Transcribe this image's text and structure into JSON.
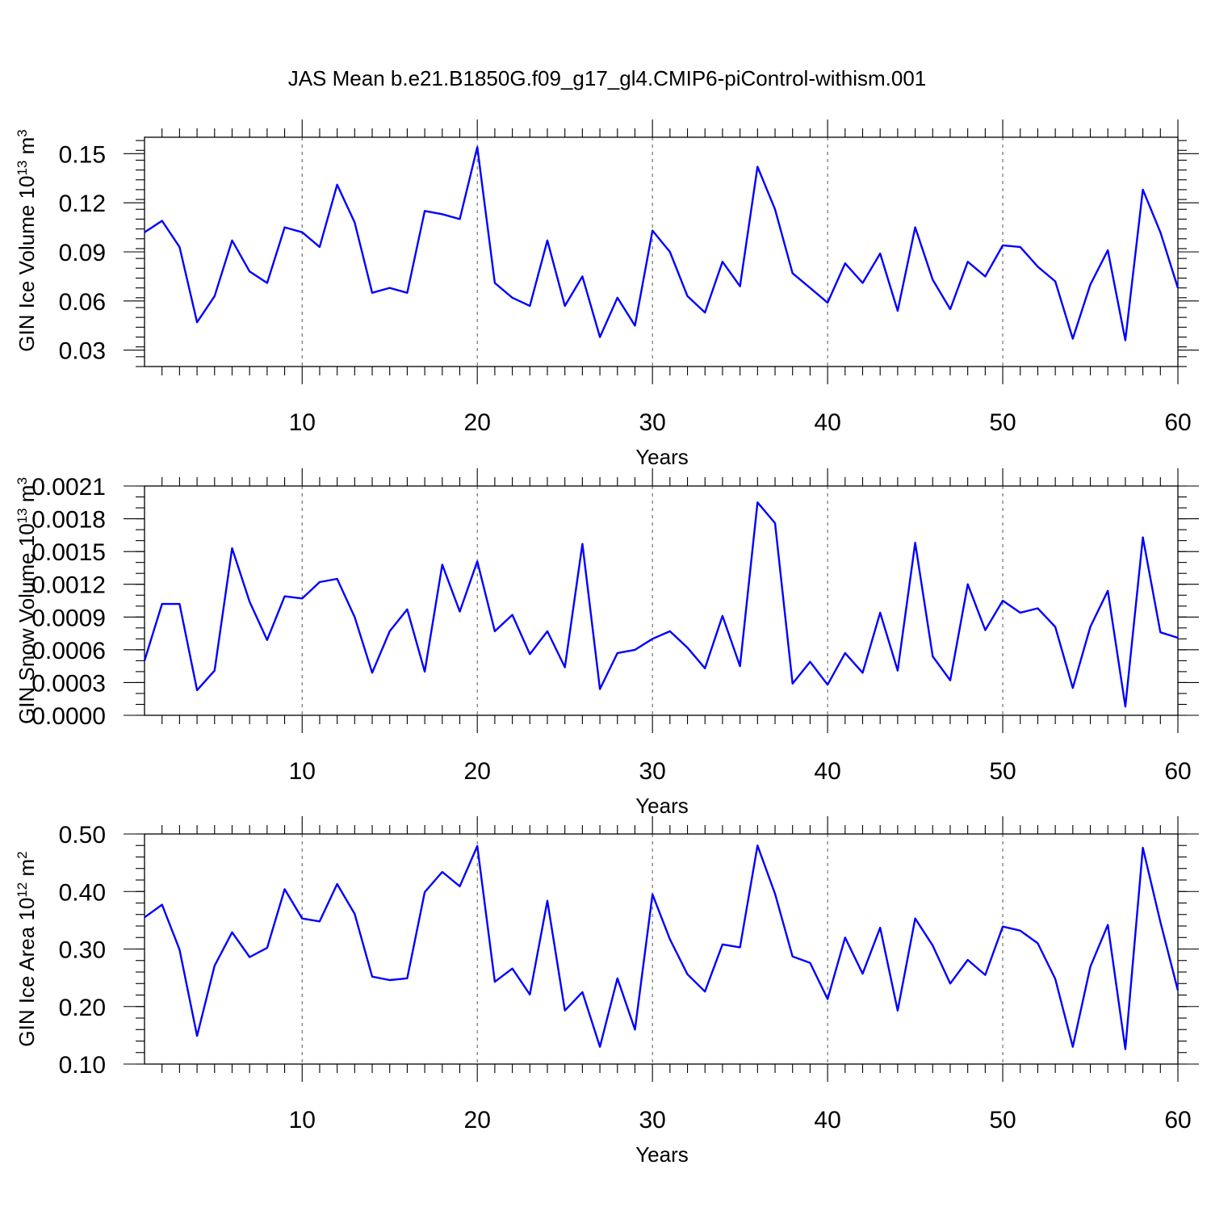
{
  "title": "JAS Mean b.e21.B1850G.f09_g17_gl4.CMIP6-piControl-withism.001",
  "colors": {
    "line": "#0000ff",
    "grid": "#555555",
    "frame": "#000000"
  },
  "chart_data": [
    {
      "type": "line",
      "ylabel_main": "GIN Ice Volume 10",
      "ylabel_exp": "13",
      "ylabel_unit": " m",
      "ylabel_unit_exp": "3",
      "xlabel": "Years",
      "xlim": [
        1,
        60
      ],
      "ylim": [
        0.02,
        0.16
      ],
      "xticks": [
        10,
        20,
        30,
        40,
        50,
        60
      ],
      "yticks": [
        0.03,
        0.06,
        0.09,
        0.12,
        0.15
      ],
      "ytick_labels": [
        "0.03",
        "0.06",
        "0.09",
        "0.12",
        "0.15"
      ],
      "ytick_minor_step": 0.006,
      "xgrid": [
        10,
        20,
        30,
        40,
        50
      ],
      "x": [
        1,
        2,
        3,
        4,
        5,
        6,
        7,
        8,
        9,
        10,
        11,
        12,
        13,
        14,
        15,
        16,
        17,
        18,
        19,
        20,
        21,
        22,
        23,
        24,
        25,
        26,
        27,
        28,
        29,
        30,
        31,
        32,
        33,
        34,
        35,
        36,
        37,
        38,
        39,
        40,
        41,
        42,
        43,
        44,
        45,
        46,
        47,
        48,
        49,
        50,
        51,
        52,
        53,
        54,
        55,
        56,
        57,
        58,
        59,
        60
      ],
      "values": [
        0.102,
        0.109,
        0.093,
        0.047,
        0.063,
        0.097,
        0.078,
        0.071,
        0.105,
        0.102,
        0.093,
        0.131,
        0.108,
        0.065,
        0.068,
        0.065,
        0.115,
        0.113,
        0.11,
        0.154,
        0.071,
        0.062,
        0.057,
        0.097,
        0.057,
        0.075,
        0.038,
        0.062,
        0.045,
        0.103,
        0.09,
        0.063,
        0.053,
        0.084,
        0.069,
        0.142,
        0.116,
        0.077,
        0.068,
        0.059,
        0.083,
        0.071,
        0.089,
        0.054,
        0.105,
        0.073,
        0.055,
        0.084,
        0.075,
        0.094,
        0.093,
        0.081,
        0.072,
        0.037,
        0.07,
        0.091,
        0.036,
        0.128,
        0.102,
        0.068
      ]
    },
    {
      "type": "line",
      "ylabel_main": "GIN Snow Volume 10",
      "ylabel_exp": "13",
      "ylabel_unit": " m",
      "ylabel_unit_exp": "3",
      "xlabel": "Years",
      "xlim": [
        1,
        60
      ],
      "ylim": [
        0.0,
        0.0021
      ],
      "xticks": [
        10,
        20,
        30,
        40,
        50,
        60
      ],
      "yticks": [
        0.0,
        0.0003,
        0.0006,
        0.0009,
        0.0012,
        0.0015,
        0.0018,
        0.0021
      ],
      "ytick_labels": [
        "0.0000",
        "0.0003",
        "0.0006",
        "0.0009",
        "0.0012",
        "0.0015",
        "0.0018",
        "0.0021"
      ],
      "ytick_minor_step": 0.0001,
      "xgrid": [
        10,
        20,
        30,
        40,
        50
      ],
      "x": [
        1,
        2,
        3,
        4,
        5,
        6,
        7,
        8,
        9,
        10,
        11,
        12,
        13,
        14,
        15,
        16,
        17,
        18,
        19,
        20,
        21,
        22,
        23,
        24,
        25,
        26,
        27,
        28,
        29,
        30,
        31,
        32,
        33,
        34,
        35,
        36,
        37,
        38,
        39,
        40,
        41,
        42,
        43,
        44,
        45,
        46,
        47,
        48,
        49,
        50,
        51,
        52,
        53,
        54,
        55,
        56,
        57,
        58,
        59,
        60
      ],
      "values": [
        0.0005,
        0.00102,
        0.00102,
        0.00023,
        0.00041,
        0.00153,
        0.00104,
        0.00069,
        0.00109,
        0.00107,
        0.00122,
        0.00125,
        0.0009,
        0.00039,
        0.00077,
        0.00097,
        0.0004,
        0.00138,
        0.00095,
        0.00141,
        0.00077,
        0.00092,
        0.00056,
        0.00077,
        0.00044,
        0.00157,
        0.00024,
        0.00057,
        0.0006,
        0.0007,
        0.00077,
        0.00062,
        0.00043,
        0.00091,
        0.00045,
        0.00195,
        0.00176,
        0.00029,
        0.00049,
        0.00028,
        0.00057,
        0.00039,
        0.00094,
        0.00041,
        0.00158,
        0.00054,
        0.00032,
        0.0012,
        0.00078,
        0.00105,
        0.00094,
        0.00098,
        0.00081,
        0.00025,
        0.00081,
        0.00114,
        8e-05,
        0.00163,
        0.00076,
        0.00071
      ]
    },
    {
      "type": "line",
      "ylabel_main": "GIN Ice Area 10",
      "ylabel_exp": "12",
      "ylabel_unit": " m",
      "ylabel_unit_exp": "2",
      "xlabel": "Years",
      "xlim": [
        1,
        60
      ],
      "ylim": [
        0.1,
        0.5
      ],
      "xticks": [
        10,
        20,
        30,
        40,
        50,
        60
      ],
      "yticks": [
        0.1,
        0.2,
        0.3,
        0.4,
        0.5
      ],
      "ytick_labels": [
        "0.10",
        "0.20",
        "0.30",
        "0.40",
        "0.50"
      ],
      "ytick_minor_step": 0.02,
      "xgrid": [
        10,
        20,
        30,
        40,
        50
      ],
      "x": [
        1,
        2,
        3,
        4,
        5,
        6,
        7,
        8,
        9,
        10,
        11,
        12,
        13,
        14,
        15,
        16,
        17,
        18,
        19,
        20,
        21,
        22,
        23,
        24,
        25,
        26,
        27,
        28,
        29,
        30,
        31,
        32,
        33,
        34,
        35,
        36,
        37,
        38,
        39,
        40,
        41,
        42,
        43,
        44,
        45,
        46,
        47,
        48,
        49,
        50,
        51,
        52,
        53,
        54,
        55,
        56,
        57,
        58,
        59,
        60
      ],
      "values": [
        0.355,
        0.377,
        0.299,
        0.149,
        0.271,
        0.329,
        0.286,
        0.302,
        0.404,
        0.353,
        0.348,
        0.413,
        0.361,
        0.252,
        0.246,
        0.249,
        0.399,
        0.434,
        0.409,
        0.479,
        0.243,
        0.266,
        0.221,
        0.384,
        0.193,
        0.225,
        0.13,
        0.249,
        0.16,
        0.395,
        0.317,
        0.256,
        0.226,
        0.308,
        0.303,
        0.48,
        0.396,
        0.287,
        0.276,
        0.213,
        0.32,
        0.257,
        0.337,
        0.193,
        0.353,
        0.306,
        0.24,
        0.281,
        0.255,
        0.339,
        0.332,
        0.31,
        0.248,
        0.13,
        0.269,
        0.342,
        0.126,
        0.476,
        0.347,
        0.228
      ]
    }
  ]
}
